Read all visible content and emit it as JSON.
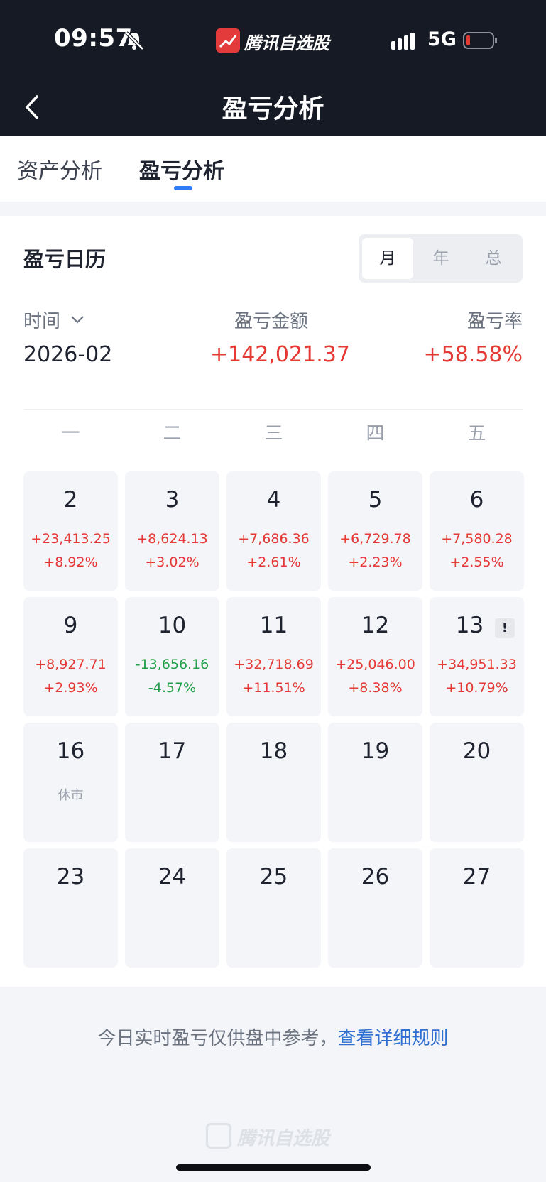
{
  "status_bar": {
    "time": "09:57",
    "app_name": "腾讯自选股",
    "network": "5G"
  },
  "header": {
    "title": "盈亏分析"
  },
  "tabs": [
    {
      "label": "资产分析",
      "active": false
    },
    {
      "label": "盈亏分析",
      "active": true
    }
  ],
  "calendar": {
    "title": "盈亏日历",
    "period_options": [
      "月",
      "年",
      "总"
    ],
    "selected_period": "月",
    "time_label": "时间",
    "amount_label": "盈亏金额",
    "rate_label": "盈亏率",
    "month": "2026-02",
    "total_amount": "+142,021.37",
    "total_rate": "+58.58%",
    "weekdays": [
      "一",
      "二",
      "三",
      "四",
      "五"
    ],
    "weeks": [
      [
        {
          "day": "2",
          "pnl": "+23,413.25",
          "rate": "+8.92%",
          "trend": "up"
        },
        {
          "day": "3",
          "pnl": "+8,624.13",
          "rate": "+3.02%",
          "trend": "up"
        },
        {
          "day": "4",
          "pnl": "+7,686.36",
          "rate": "+2.61%",
          "trend": "up"
        },
        {
          "day": "5",
          "pnl": "+6,729.78",
          "rate": "+2.23%",
          "trend": "up"
        },
        {
          "day": "6",
          "pnl": "+7,580.28",
          "rate": "+2.55%",
          "trend": "up"
        }
      ],
      [
        {
          "day": "9",
          "pnl": "+8,927.71",
          "rate": "+2.93%",
          "trend": "up"
        },
        {
          "day": "10",
          "pnl": "-13,656.16",
          "rate": "-4.57%",
          "trend": "down"
        },
        {
          "day": "11",
          "pnl": "+32,718.69",
          "rate": "+11.51%",
          "trend": "up"
        },
        {
          "day": "12",
          "pnl": "+25,046.00",
          "rate": "+8.38%",
          "trend": "up"
        },
        {
          "day": "13",
          "pnl": "+34,951.33",
          "rate": "+10.79%",
          "trend": "up",
          "badge": "!"
        }
      ],
      [
        {
          "day": "16",
          "note": "休市"
        },
        {
          "day": "17"
        },
        {
          "day": "18"
        },
        {
          "day": "19"
        },
        {
          "day": "20"
        }
      ],
      [
        {
          "day": "23"
        },
        {
          "day": "24"
        },
        {
          "day": "25"
        },
        {
          "day": "26"
        },
        {
          "day": "27"
        }
      ]
    ]
  },
  "footer": {
    "note": "今日实时盈亏仅供盘中参考，",
    "link": "查看详细规则",
    "watermark": "腾讯自选股"
  },
  "colors": {
    "up": "#e53935",
    "down": "#22a04a",
    "accent": "#2f7cf6",
    "link": "#2f6fcf"
  }
}
